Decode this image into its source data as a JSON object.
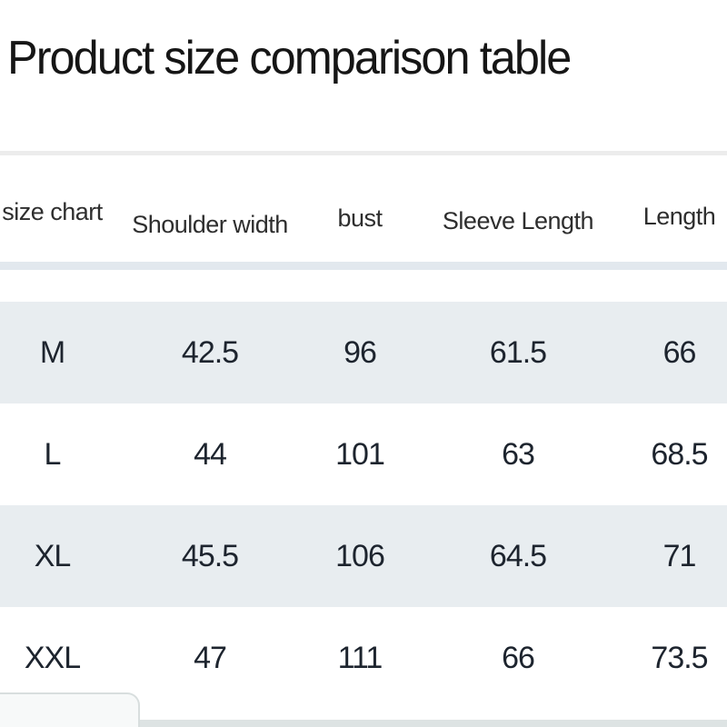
{
  "page": {
    "title": "Product size comparison table"
  },
  "table": {
    "columns": [
      {
        "id": "size-chart",
        "label": "size chart"
      },
      {
        "id": "shoulder-width",
        "label": "Shoulder width"
      },
      {
        "id": "bust",
        "label": "bust"
      },
      {
        "id": "sleeve-length",
        "label": "Sleeve Length"
      },
      {
        "id": "length",
        "label": "Length"
      }
    ],
    "rows": [
      {
        "cells": [
          "M",
          "42.5",
          "96",
          "61.5",
          "66"
        ]
      },
      {
        "cells": [
          "L",
          "44",
          "101",
          "63",
          "68.5"
        ]
      },
      {
        "cells": [
          "XL",
          "45.5",
          "106",
          "64.5",
          "71"
        ]
      },
      {
        "cells": [
          "XXL",
          "47",
          "111",
          "66",
          "73.5"
        ]
      }
    ]
  },
  "chart_data": {
    "type": "table",
    "title": "Product size comparison table",
    "columns": [
      "size chart",
      "Shoulder width",
      "bust",
      "Sleeve Length",
      "Length"
    ],
    "rows": [
      [
        "M",
        42.5,
        96,
        61.5,
        66
      ],
      [
        "L",
        44,
        101,
        63,
        68.5
      ],
      [
        "XL",
        45.5,
        106,
        64.5,
        71
      ],
      [
        "XXL",
        47,
        111,
        66,
        73.5
      ]
    ],
    "layout_hints": {
      "shaded_rows": [
        "M",
        "XL"
      ],
      "row_shading_style": "alternating starting with first data row"
    }
  },
  "colors": {
    "background": "#ffffff",
    "text": "#1d242e",
    "header_text": "#2e2e2e",
    "row_shade": "#e8edf0",
    "divider": "#ececec",
    "header_divider": "#e2e8ee",
    "bottom_band": "#dde3e3",
    "panel_background": "#f7f9f9",
    "panel_border": "#d8dede"
  }
}
